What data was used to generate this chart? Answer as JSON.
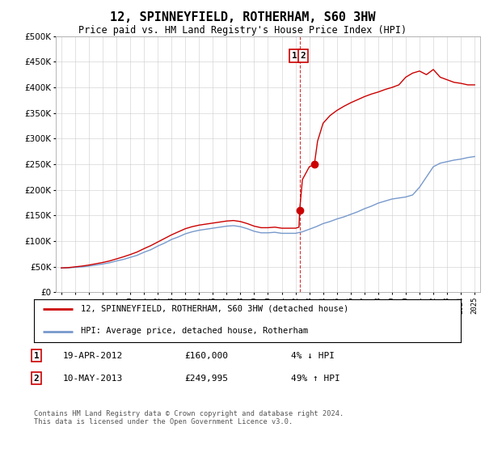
{
  "title": "12, SPINNEYFIELD, ROTHERHAM, S60 3HW",
  "subtitle": "Price paid vs. HM Land Registry's House Price Index (HPI)",
  "hpi_color": "#7799cc",
  "sale_color": "#cc0000",
  "sale1_year": 2012.3,
  "sale1_price": 160000,
  "sale2_year": 2013.37,
  "sale2_price": 249995,
  "ylim_min": 0,
  "ylim_max": 500000,
  "yticks": [
    0,
    50000,
    100000,
    150000,
    200000,
    250000,
    300000,
    350000,
    400000,
    450000,
    500000
  ],
  "ytick_labels": [
    "£0",
    "£50K",
    "£100K",
    "£150K",
    "£200K",
    "£250K",
    "£300K",
    "£350K",
    "£400K",
    "£450K",
    "£500K"
  ],
  "legend_line1": "12, SPINNEYFIELD, ROTHERHAM, S60 3HW (detached house)",
  "legend_line2": "HPI: Average price, detached house, Rotherham",
  "sale1_date": "19-APR-2012",
  "sale1_amount": "£160,000",
  "sale1_hpi": "4% ↓ HPI",
  "sale2_date": "10-MAY-2013",
  "sale2_amount": "£249,995",
  "sale2_hpi": "49% ↑ HPI",
  "footer": "Contains HM Land Registry data © Crown copyright and database right 2024.\nThis data is licensed under the Open Government Licence v3.0.",
  "hpi_x": [
    1995,
    1995.5,
    1996,
    1996.5,
    1997,
    1997.5,
    1998,
    1998.5,
    1999,
    1999.5,
    2000,
    2000.5,
    2001,
    2001.5,
    2002,
    2002.5,
    2003,
    2003.5,
    2004,
    2004.5,
    2005,
    2005.5,
    2006,
    2006.5,
    2007,
    2007.5,
    2008,
    2008.5,
    2009,
    2009.5,
    2010,
    2010.5,
    2011,
    2011.5,
    2012,
    2012.5,
    2013,
    2013.5,
    2014,
    2014.5,
    2015,
    2015.5,
    2016,
    2016.5,
    2017,
    2017.5,
    2018,
    2018.5,
    2019,
    2019.5,
    2020,
    2020.5,
    2021,
    2021.5,
    2022,
    2022.5,
    2023,
    2023.5,
    2024,
    2024.5,
    2025
  ],
  "hpi_y": [
    47000,
    47500,
    48500,
    49500,
    51000,
    53000,
    55000,
    57500,
    61000,
    64000,
    68000,
    72000,
    78000,
    83000,
    90000,
    96000,
    103000,
    108000,
    114000,
    118000,
    121000,
    123000,
    125000,
    127000,
    129000,
    130000,
    128000,
    124000,
    119000,
    116000,
    116000,
    117000,
    115000,
    115000,
    115000,
    118000,
    123000,
    128000,
    134000,
    138000,
    143000,
    147000,
    152000,
    157000,
    163000,
    168000,
    174000,
    178000,
    182000,
    184000,
    186000,
    190000,
    205000,
    225000,
    245000,
    252000,
    255000,
    258000,
    260000,
    263000,
    265000
  ],
  "red_x": [
    1995,
    1995.5,
    1996,
    1996.5,
    1997,
    1997.5,
    1998,
    1998.5,
    1999,
    1999.5,
    2000,
    2000.5,
    2001,
    2001.5,
    2002,
    2002.5,
    2003,
    2003.5,
    2004,
    2004.5,
    2005,
    2005.5,
    2006,
    2006.5,
    2007,
    2007.5,
    2008,
    2008.5,
    2009,
    2009.5,
    2010,
    2010.5,
    2011,
    2011.5,
    2012,
    2012.25,
    2012.3,
    2012.5,
    2013,
    2013.35,
    2013.37,
    2013.6,
    2014,
    2014.5,
    2015,
    2015.5,
    2016,
    2016.5,
    2017,
    2017.5,
    2018,
    2018.5,
    2019,
    2019.5,
    2020,
    2020.5,
    2021,
    2021.5,
    2022,
    2022.5,
    2023,
    2023.5,
    2024,
    2024.5,
    2025
  ],
  "red_y": [
    47500,
    48000,
    49500,
    51000,
    53000,
    55500,
    58000,
    61000,
    65000,
    69000,
    73500,
    78500,
    85000,
    91000,
    98000,
    105000,
    112000,
    118000,
    124000,
    128000,
    131000,
    133000,
    135000,
    137000,
    139000,
    140000,
    138000,
    134000,
    129000,
    126000,
    126000,
    127000,
    125000,
    125000,
    125000,
    127000,
    160000,
    220000,
    245000,
    249000,
    249995,
    295000,
    330000,
    345000,
    355000,
    363000,
    370000,
    376000,
    382000,
    387000,
    391000,
    396000,
    400000,
    405000,
    420000,
    428000,
    432000,
    425000,
    435000,
    420000,
    415000,
    410000,
    408000,
    405000,
    405000
  ]
}
